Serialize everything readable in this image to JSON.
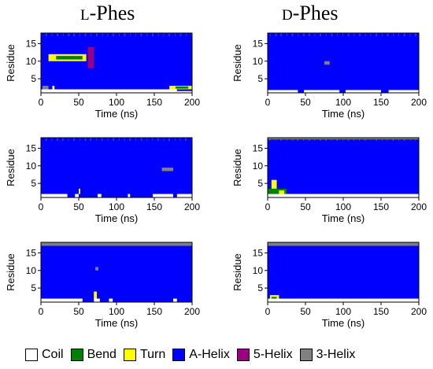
{
  "titles": {
    "left_prefix": "L",
    "left_suffix": "-Phes",
    "right_prefix": "D",
    "right_suffix": "-Phes"
  },
  "chart_data": [
    {
      "type": "heatmap",
      "id": "L-1",
      "column": "left",
      "row": 0,
      "xlabel": "Time (ns)",
      "ylabel": "Residue",
      "xlim": [
        0,
        200
      ],
      "ylim": [
        1,
        18
      ],
      "xticks": [
        0,
        50,
        100,
        150,
        200
      ],
      "yticks": [
        5,
        10,
        15
      ],
      "background": "A-Helix",
      "regions": [
        {
          "state": "Coil",
          "t": [
            0,
            180
          ],
          "r": [
            1,
            2
          ]
        },
        {
          "state": "Coil",
          "t": [
            180,
            200
          ],
          "r": [
            1,
            1.5
          ]
        },
        {
          "state": "Turn",
          "t": [
            10,
            60
          ],
          "r": [
            10,
            12
          ]
        },
        {
          "state": "Bend",
          "t": [
            20,
            55
          ],
          "r": [
            10.5,
            11.5
          ]
        },
        {
          "state": "5-Helix",
          "t": [
            62,
            70
          ],
          "r": [
            8,
            14
          ]
        },
        {
          "state": "Turn",
          "t": [
            170,
            200
          ],
          "r": [
            2,
            3
          ]
        },
        {
          "state": "Bend",
          "t": [
            178,
            195
          ],
          "r": [
            2.2,
            2.8
          ]
        },
        {
          "state": "3-Helix",
          "t": [
            2,
            10
          ],
          "r": [
            2,
            3
          ]
        },
        {
          "state": "Turn",
          "t": [
            15,
            18
          ],
          "r": [
            2,
            3
          ]
        }
      ]
    },
    {
      "type": "heatmap",
      "id": "D-1",
      "column": "right",
      "row": 0,
      "xlabel": "Time (ns)",
      "ylabel": "Residue",
      "xlim": [
        0,
        200
      ],
      "ylim": [
        1,
        18
      ],
      "xticks": [
        0,
        50,
        100,
        150,
        200
      ],
      "yticks": [
        5,
        10,
        15
      ],
      "background": "A-Helix",
      "regions": [
        {
          "state": "Coil",
          "t": [
            0,
            200
          ],
          "r": [
            1,
            1.8
          ]
        },
        {
          "state": "3-Helix",
          "t": [
            75,
            82
          ],
          "r": [
            9,
            10
          ]
        },
        {
          "state": "A-Helix",
          "t": [
            40,
            48
          ],
          "r": [
            1,
            2
          ]
        },
        {
          "state": "A-Helix",
          "t": [
            95,
            103
          ],
          "r": [
            1,
            2
          ]
        },
        {
          "state": "A-Helix",
          "t": [
            150,
            160
          ],
          "r": [
            1,
            2
          ]
        }
      ]
    },
    {
      "type": "heatmap",
      "id": "L-2",
      "column": "left",
      "row": 1,
      "xlabel": "Time (ns)",
      "ylabel": "Residue",
      "xlim": [
        0,
        200
      ],
      "ylim": [
        1,
        18
      ],
      "xticks": [
        0,
        50,
        100,
        150,
        200
      ],
      "yticks": [
        5,
        10,
        15
      ],
      "background": "A-Helix",
      "regions": [
        {
          "state": "Coil",
          "t": [
            0,
            35
          ],
          "r": [
            1,
            2
          ]
        },
        {
          "state": "Coil",
          "t": [
            45,
            50
          ],
          "r": [
            1,
            2
          ]
        },
        {
          "state": "Coil",
          "t": [
            75,
            80
          ],
          "r": [
            1,
            2
          ]
        },
        {
          "state": "Coil",
          "t": [
            115,
            118
          ],
          "r": [
            1,
            2
          ]
        },
        {
          "state": "Coil",
          "t": [
            148,
            175
          ],
          "r": [
            1,
            2
          ]
        },
        {
          "state": "Coil",
          "t": [
            180,
            200
          ],
          "r": [
            1,
            2
          ]
        },
        {
          "state": "Turn",
          "t": [
            50,
            52
          ],
          "r": [
            2,
            3.5
          ]
        },
        {
          "state": "3-Helix",
          "t": [
            160,
            175
          ],
          "r": [
            8.5,
            9.5
          ]
        }
      ]
    },
    {
      "type": "heatmap",
      "id": "D-2",
      "column": "right",
      "row": 1,
      "xlabel": "Time (ns)",
      "ylabel": "Residue",
      "xlim": [
        0,
        200
      ],
      "ylim": [
        1,
        18
      ],
      "xticks": [
        0,
        50,
        100,
        150,
        200
      ],
      "yticks": [
        5,
        10,
        15
      ],
      "background": "A-Helix",
      "regions": [
        {
          "state": "Coil",
          "t": [
            0,
            200
          ],
          "r": [
            1,
            2
          ]
        },
        {
          "state": "Bend",
          "t": [
            0,
            25
          ],
          "r": [
            2,
            3.5
          ]
        },
        {
          "state": "Turn",
          "t": [
            5,
            12
          ],
          "r": [
            3.5,
            6
          ]
        },
        {
          "state": "3-Helix",
          "t": [
            0,
            200
          ],
          "r": [
            17.5,
            18
          ]
        },
        {
          "state": "Turn",
          "t": [
            15,
            22
          ],
          "r": [
            2,
            3
          ]
        }
      ]
    },
    {
      "type": "heatmap",
      "id": "L-3",
      "column": "left",
      "row": 2,
      "xlabel": "Time (ns)",
      "ylabel": "Residue",
      "xlim": [
        0,
        200
      ],
      "ylim": [
        1,
        18
      ],
      "xticks": [
        0,
        50,
        100,
        150,
        200
      ],
      "yticks": [
        5,
        10,
        15
      ],
      "background": "A-Helix",
      "regions": [
        {
          "state": "Coil",
          "t": [
            0,
            55
          ],
          "r": [
            1,
            2
          ]
        },
        {
          "state": "Coil",
          "t": [
            70,
            78
          ],
          "r": [
            1,
            2
          ]
        },
        {
          "state": "Coil",
          "t": [
            90,
            95
          ],
          "r": [
            1,
            2
          ]
        },
        {
          "state": "Coil",
          "t": [
            175,
            180
          ],
          "r": [
            1,
            2
          ]
        },
        {
          "state": "Turn",
          "t": [
            70,
            74
          ],
          "r": [
            2,
            4
          ]
        },
        {
          "state": "3-Helix",
          "t": [
            0,
            200
          ],
          "r": [
            17,
            18
          ]
        },
        {
          "state": "3-Helix",
          "t": [
            72,
            76
          ],
          "r": [
            10,
            11
          ]
        }
      ]
    },
    {
      "type": "heatmap",
      "id": "D-3",
      "column": "right",
      "row": 2,
      "xlabel": "Time (ns)",
      "ylabel": "Residue",
      "xlim": [
        0,
        200
      ],
      "ylim": [
        1,
        18
      ],
      "xticks": [
        0,
        50,
        100,
        150,
        200
      ],
      "yticks": [
        5,
        10,
        15
      ],
      "background": "A-Helix",
      "regions": [
        {
          "state": "Coil",
          "t": [
            0,
            200
          ],
          "r": [
            1,
            2
          ]
        },
        {
          "state": "Turn",
          "t": [
            3,
            15
          ],
          "r": [
            2,
            3
          ]
        },
        {
          "state": "Bend",
          "t": [
            5,
            12
          ],
          "r": [
            2,
            2.5
          ]
        },
        {
          "state": "3-Helix",
          "t": [
            0,
            200
          ],
          "r": [
            17,
            18
          ]
        }
      ]
    }
  ],
  "legend": [
    {
      "label": "Coil",
      "color": "#ffffff"
    },
    {
      "label": "Bend",
      "color": "#008000"
    },
    {
      "label": "Turn",
      "color": "#ffff00"
    },
    {
      "label": "A-Helix",
      "color": "#0000ff"
    },
    {
      "label": "5-Helix",
      "color": "#9b0080"
    },
    {
      "label": "3-Helix",
      "color": "#808080"
    }
  ]
}
